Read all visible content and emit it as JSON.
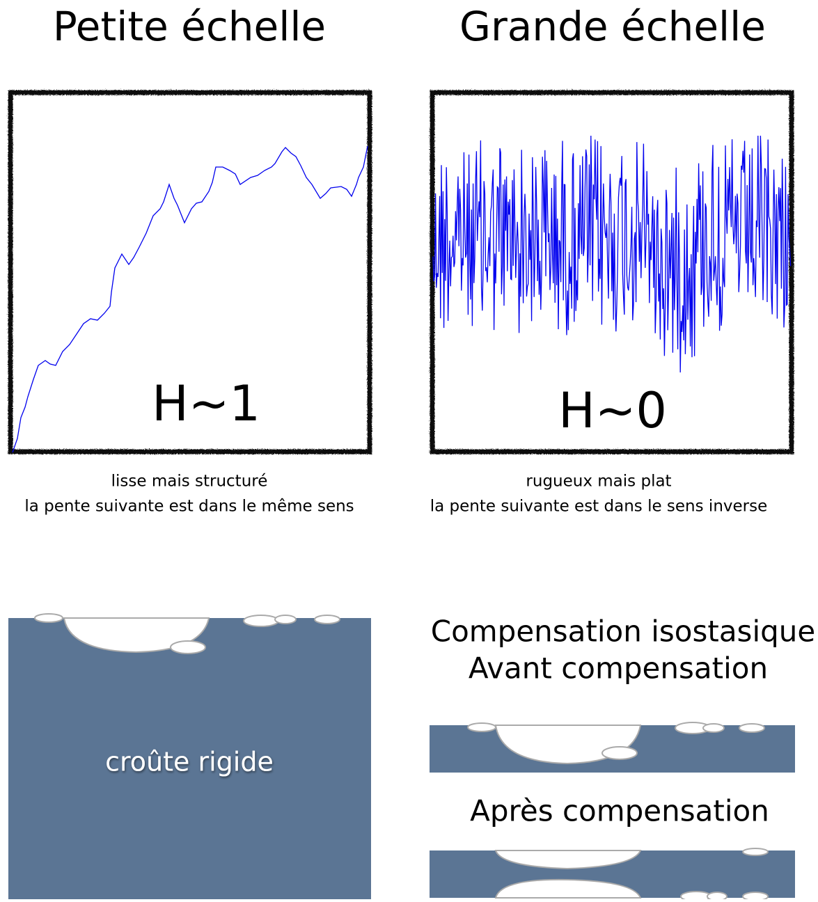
{
  "panels": [
    {
      "title": "Petite échelle",
      "label": "H~1",
      "caption": [
        "lisse mais structuré",
        "la pente suivante est dans le même sens"
      ]
    },
    {
      "title": "Grande échelle",
      "label": "H~0",
      "caption": [
        "rugueux mais plat",
        "la pente suivante est dans le sens inverse"
      ]
    }
  ],
  "crust": {
    "label": "croûte rigide"
  },
  "compensation": {
    "title": "Compensation isostasique",
    "before": "Avant compensation",
    "after": "Après compensation"
  }
}
